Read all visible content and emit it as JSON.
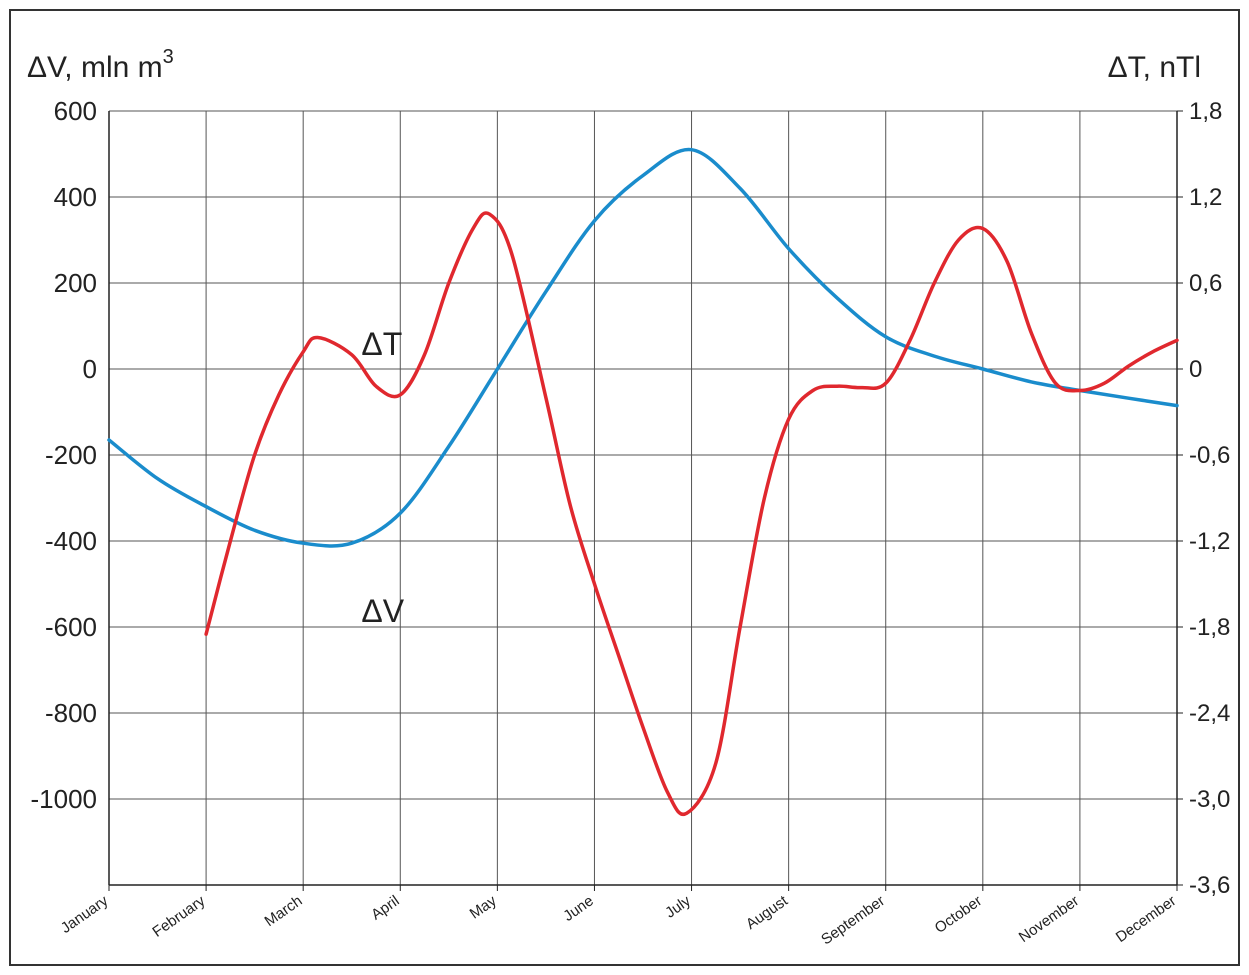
{
  "chart_data": {
    "type": "line",
    "left_axis_title": {
      "main": "ΔV, mln m",
      "sup": "3"
    },
    "right_axis_title": "ΔT, nTl",
    "left_ylim": [
      -1200,
      600
    ],
    "right_ylim": [
      -3.6,
      1.8
    ],
    "left_ticks": [
      "600",
      "400",
      "200",
      "0",
      "-200",
      "-400",
      "-600",
      "-800",
      "-1000"
    ],
    "left_tick_values": [
      600,
      400,
      200,
      0,
      -200,
      -400,
      -600,
      -800,
      -1000
    ],
    "right_ticks": [
      "1,8",
      "1,2",
      "0,6",
      "0",
      "-0,6",
      "-1,2",
      "-1,8",
      "-2,4",
      "-3,0",
      "-3,6"
    ],
    "right_tick_values": [
      1.8,
      1.2,
      0.6,
      0,
      -0.6,
      -1.2,
      -1.8,
      -2.4,
      -3.0,
      -3.6
    ],
    "categories": [
      "January",
      "February",
      "March",
      "April",
      "May",
      "June",
      "July",
      "August",
      "September",
      "October",
      "November",
      "December"
    ],
    "grid": true,
    "series": [
      {
        "name": "ΔV",
        "axis": "left",
        "color": "#1a8ccc",
        "points": [
          [
            0,
            -165
          ],
          [
            0.5,
            -255
          ],
          [
            1,
            -320
          ],
          [
            1.5,
            -375
          ],
          [
            2,
            -405
          ],
          [
            2.5,
            -405
          ],
          [
            3,
            -335
          ],
          [
            3.5,
            -180
          ],
          [
            4,
            0
          ],
          [
            4.5,
            180
          ],
          [
            5,
            345
          ],
          [
            5.5,
            450
          ],
          [
            6,
            510
          ],
          [
            6.5,
            420
          ],
          [
            7,
            280
          ],
          [
            7.5,
            165
          ],
          [
            8,
            75
          ],
          [
            8.5,
            30
          ],
          [
            9,
            0
          ],
          [
            9.5,
            -30
          ],
          [
            10,
            -50
          ],
          [
            10.5,
            -68
          ],
          [
            11,
            -85
          ]
        ]
      },
      {
        "name": "ΔT",
        "axis": "right",
        "color": "#e0282e",
        "points": [
          [
            1,
            -1.85
          ],
          [
            1.25,
            -1.2
          ],
          [
            1.5,
            -0.6
          ],
          [
            1.75,
            -0.18
          ],
          [
            2,
            0.12
          ],
          [
            2.15,
            0.22
          ],
          [
            2.5,
            0.1
          ],
          [
            2.75,
            -0.12
          ],
          [
            3,
            -0.18
          ],
          [
            3.25,
            0.1
          ],
          [
            3.5,
            0.6
          ],
          [
            3.75,
            0.98
          ],
          [
            3.92,
            1.08
          ],
          [
            4.15,
            0.8
          ],
          [
            4.5,
            -0.2
          ],
          [
            4.75,
            -0.95
          ],
          [
            5,
            -1.5
          ],
          [
            5.25,
            -2.0
          ],
          [
            5.5,
            -2.5
          ],
          [
            5.75,
            -2.95
          ],
          [
            5.95,
            -3.1
          ],
          [
            6.25,
            -2.75
          ],
          [
            6.5,
            -1.8
          ],
          [
            6.75,
            -0.9
          ],
          [
            7,
            -0.35
          ],
          [
            7.25,
            -0.15
          ],
          [
            7.5,
            -0.12
          ],
          [
            7.75,
            -0.13
          ],
          [
            8,
            -0.1
          ],
          [
            8.25,
            0.2
          ],
          [
            8.5,
            0.6
          ],
          [
            8.75,
            0.9
          ],
          [
            9,
            0.98
          ],
          [
            9.25,
            0.75
          ],
          [
            9.5,
            0.25
          ],
          [
            9.75,
            -0.1
          ],
          [
            10,
            -0.15
          ],
          [
            10.25,
            -0.1
          ],
          [
            10.5,
            0.02
          ],
          [
            10.75,
            0.12
          ],
          [
            11,
            0.2
          ]
        ]
      }
    ],
    "annotations": [
      {
        "text": "ΔT",
        "x": 2.6,
        "y_left": 60
      },
      {
        "text": "ΔV",
        "x": 2.6,
        "y_left": -560
      }
    ]
  }
}
